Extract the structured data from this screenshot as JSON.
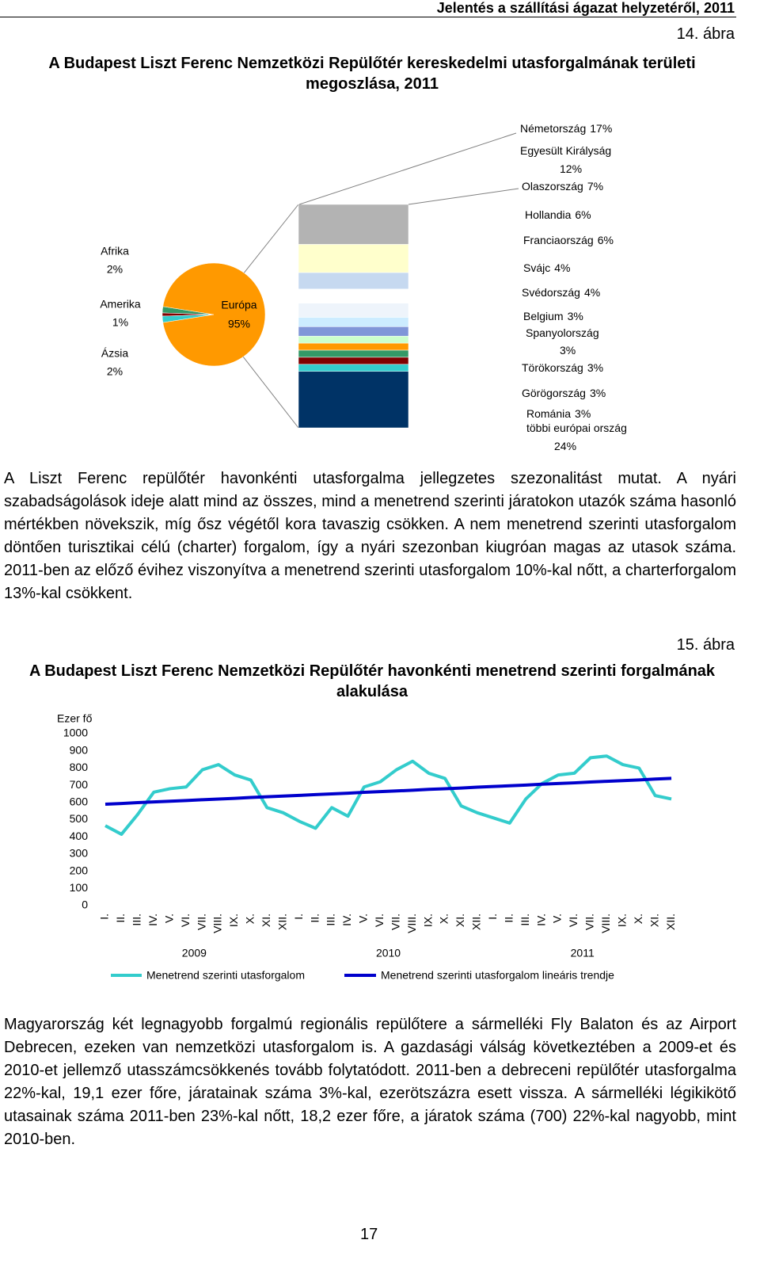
{
  "header": {
    "running_title": "Jelentés a szállítási ágazat helyzetéről, 2011"
  },
  "chart_data": [
    {
      "type": "pie",
      "figure_label": "14. ábra",
      "title": "A Budapest Liszt Ferenc Nemzetközi Repülőtér kereskedelmi utasforgalmának területi megoszlása, 2011",
      "categories": [
        "Afrika",
        "Amerika",
        "Ázsia",
        "Európa"
      ],
      "values": [
        2,
        1,
        2,
        95
      ],
      "value_labels": [
        "2%",
        "1%",
        "2%",
        "95%"
      ],
      "colors": [
        "#339966",
        "#800000",
        "#33cccc",
        "#ff9900"
      ],
      "breakdown": {
        "categories": [
          "Németország",
          "Egyesült Királyság",
          "Olaszország",
          "Hollandia",
          "Franciaország",
          "Svájc",
          "Svédország",
          "Belgium",
          "Spanyolország",
          "Törökország",
          "Görögország",
          "Románia",
          "többi európai ország"
        ],
        "values": [
          17,
          12,
          7,
          6,
          6,
          4,
          4,
          3,
          3,
          3,
          3,
          3,
          24
        ],
        "value_labels": [
          "17%",
          "12%",
          "7%",
          "6%",
          "6%",
          "4%",
          "4%",
          "3%",
          "3%",
          "3%",
          "3%",
          "3%",
          "24%"
        ],
        "colors": [
          "#b3b3b3",
          "#ffffcc",
          "#c6d9f0",
          "#ffffff",
          "#eef4fb",
          "#ccecff",
          "#8096d8",
          "#ccffcc",
          "#ff9900",
          "#339966",
          "#800000",
          "#33cccc",
          "#003366"
        ]
      }
    },
    {
      "type": "line",
      "figure_label": "15. ábra",
      "title": "A Budapest Liszt Ferenc Nemzetközi Repülőtér havonkénti menetrend szerinti forgalmának alakulása",
      "y_label": "Ezer fő",
      "categories": [
        "I.",
        "II.",
        "III.",
        "IV.",
        "V.",
        "VI.",
        "VII.",
        "VIII.",
        "IX.",
        "X.",
        "XI.",
        "XII.",
        "I.",
        "II.",
        "III.",
        "IV.",
        "V.",
        "VI.",
        "VII.",
        "VIII.",
        "IX.",
        "X.",
        "XI.",
        "XII.",
        "I.",
        "II.",
        "III.",
        "IV.",
        "V.",
        "VI.",
        "VII.",
        "VIII.",
        "IX.",
        "X.",
        "XI.",
        "XII."
      ],
      "years": [
        "2009",
        "2010",
        "2011"
      ],
      "ylim": [
        0,
        1000
      ],
      "yticks": [
        0,
        100,
        200,
        300,
        400,
        500,
        600,
        700,
        800,
        900,
        1000
      ],
      "series": [
        {
          "name": "Menetrend szerinti utasforgalom",
          "color": "#33cccc",
          "values": [
            465,
            415,
            530,
            660,
            680,
            690,
            790,
            820,
            760,
            730,
            570,
            540,
            490,
            450,
            570,
            520,
            690,
            720,
            790,
            840,
            770,
            740,
            580,
            540,
            510,
            480,
            620,
            710,
            760,
            770,
            860,
            870,
            820,
            800,
            640,
            620
          ]
        },
        {
          "name": "Menetrend szerinti utasforgalom lineáris trendje",
          "color": "#0000cc",
          "values": [
            590,
            594,
            599,
            603,
            607,
            611,
            616,
            620,
            624,
            629,
            633,
            637,
            641,
            646,
            650,
            654,
            659,
            663,
            667,
            671,
            676,
            680,
            684,
            689,
            693,
            697,
            701,
            706,
            710,
            714,
            719,
            723,
            727,
            731,
            736,
            740
          ]
        }
      ]
    }
  ],
  "paragraphs": [
    "A Liszt Ferenc repülőtér havonkénti utasforgalma jellegzetes szezonalitást mutat. A nyári szabadságolások ideje alatt mind az összes, mind a menetrend szerinti járatokon utazók száma hasonló mértékben növekszik, míg ősz végétől kora tavaszig csökken. A nem menetrend szerinti utasforgalom döntően turisztikai célú (charter) forgalom, így a nyári szezonban kiugróan magas az utasok száma. 2011-ben az előző évihez viszonyítva a menetrend szerinti utasforgalom 10%-kal nőtt, a charterforgalom 13%-kal csökkent.",
    "Magyarország két legnagyobb forgalmú regionális repülőtere a sármelléki Fly Balaton és az Airport Debrecen, ezeken van nemzetközi utasforgalom is. A gazdasági válság következtében a 2009-et és 2010-et jellemző utasszámcsökkenés tovább folytatódott. 2011-ben a debreceni repülőtér utasforgalma 22%-kal, 19,1 ezer főre, járatainak száma 3%-kal, ezerötszázra esett vissza. A sármelléki légikikötő utasainak száma 2011-ben 23%-kal nőtt, 18,2 ezer főre, a járatok száma (700) 22%-kal nagyobb, mint 2010-ben."
  ],
  "footer": {
    "page_number": "17"
  }
}
